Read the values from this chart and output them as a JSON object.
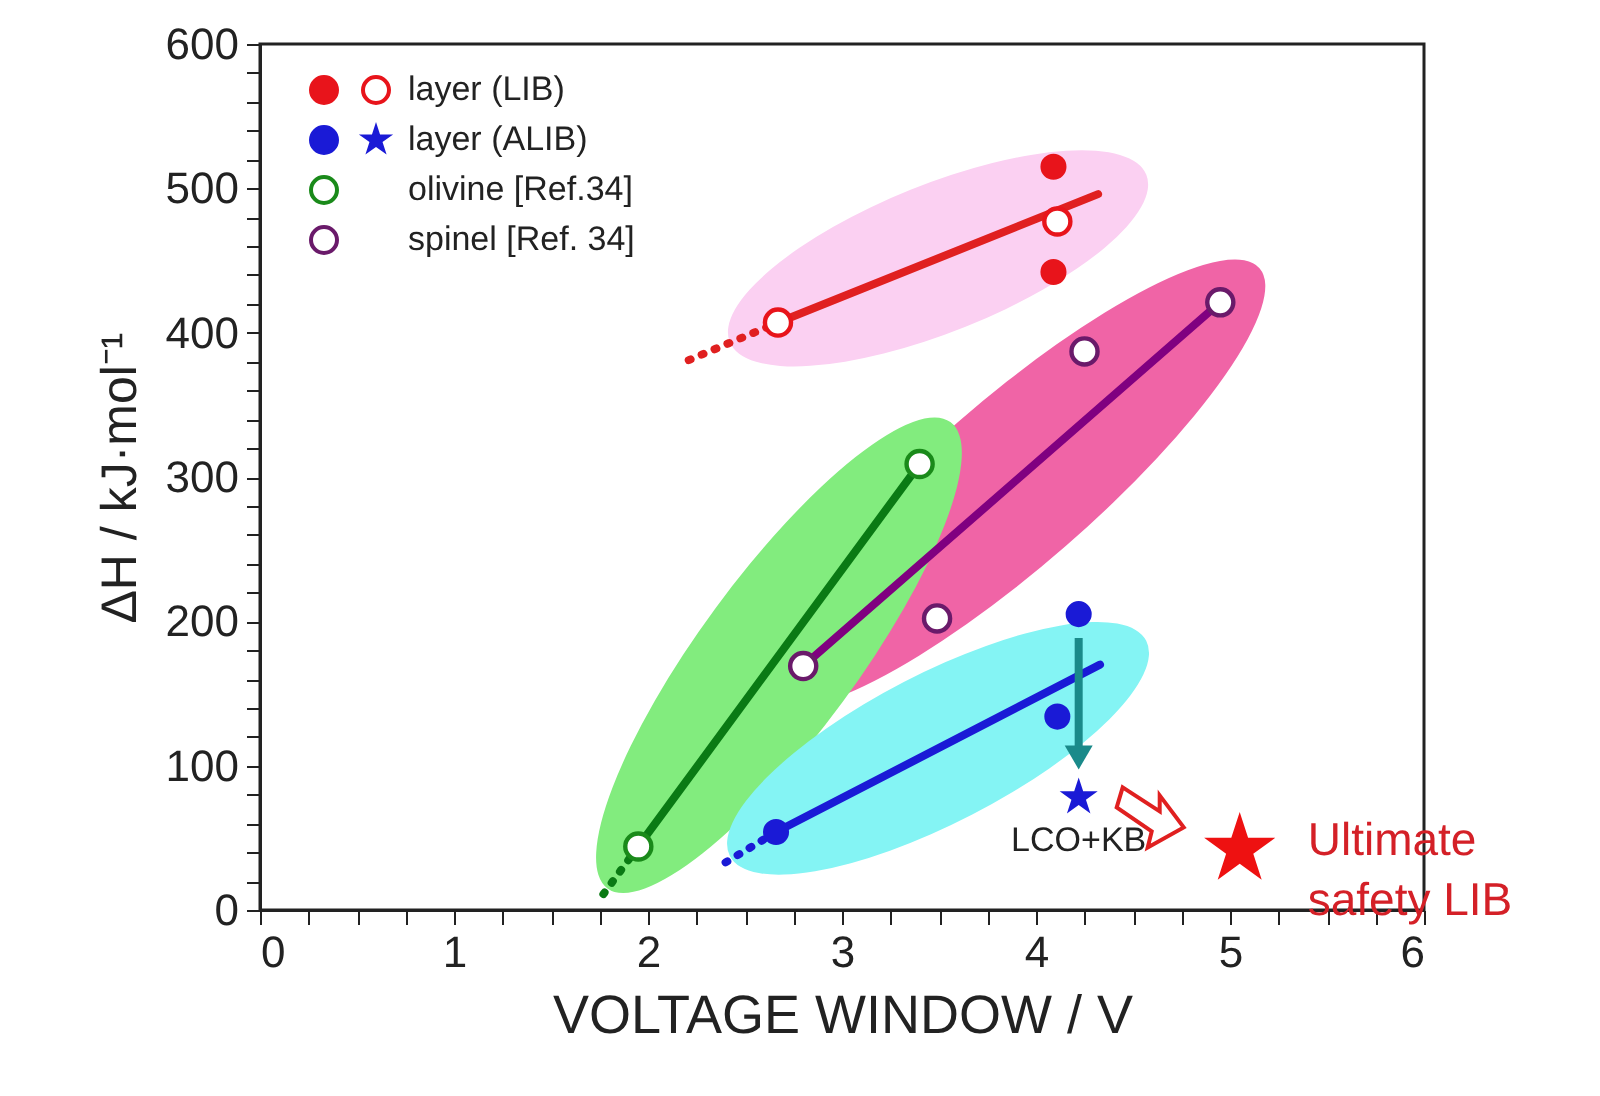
{
  "chart_data": {
    "type": "scatter",
    "xlabel": "VOLTAGE WINDOW / V",
    "ylabel": "ΔH / kJ·mol⁻¹",
    "xlim": [
      0,
      6
    ],
    "ylim": [
      0,
      600
    ],
    "xticks": [
      0,
      {
        "value": 0.25,
        "label": null
      },
      {
        "value": 0.5,
        "label": null
      },
      {
        "value": 0.75,
        "label": null
      },
      1,
      {
        "value": 1.25,
        "label": null
      },
      {
        "value": 1.5,
        "label": null
      },
      {
        "value": 1.75,
        "label": null
      },
      2,
      {
        "value": 2.25,
        "label": null
      },
      {
        "value": 2.5,
        "label": null
      },
      {
        "value": 2.75,
        "label": null
      },
      3,
      {
        "value": 3.25,
        "label": null
      },
      {
        "value": 3.5,
        "label": null
      },
      {
        "value": 3.75,
        "label": null
      },
      4,
      {
        "value": 4.25,
        "label": null
      },
      {
        "value": 4.5,
        "label": null
      },
      {
        "value": 4.75,
        "label": null
      },
      5,
      {
        "value": 5.25,
        "label": null
      },
      {
        "value": 5.5,
        "label": null
      },
      {
        "value": 5.75,
        "label": null
      },
      6
    ],
    "yticks": [
      0,
      {
        "value": 20,
        "label": null
      },
      {
        "value": 40,
        "label": null
      },
      {
        "value": 60,
        "label": null
      },
      {
        "value": 80,
        "label": null
      },
      100,
      {
        "value": 120,
        "label": null
      },
      {
        "value": 140,
        "label": null
      },
      {
        "value": 160,
        "label": null
      },
      {
        "value": 180,
        "label": null
      },
      200,
      {
        "value": 220,
        "label": null
      },
      {
        "value": 240,
        "label": null
      },
      {
        "value": 260,
        "label": null
      },
      {
        "value": 280,
        "label": null
      },
      300,
      {
        "value": 320,
        "label": null
      },
      {
        "value": 340,
        "label": null
      },
      {
        "value": 360,
        "label": null
      },
      {
        "value": 380,
        "label": null
      },
      400,
      {
        "value": 420,
        "label": null
      },
      {
        "value": 440,
        "label": null
      },
      {
        "value": 460,
        "label": null
      },
      {
        "value": 480,
        "label": null
      },
      500,
      {
        "value": 520,
        "label": null
      },
      {
        "value": 540,
        "label": null
      },
      {
        "value": 560,
        "label": null
      },
      {
        "value": 580,
        "label": null
      },
      600
    ],
    "grid": false,
    "legend": "top left",
    "marker": "circle",
    "line_style": "solid",
    "series": [
      {
        "name": "layer (LIB)",
        "color": "#e8141b",
        "x": [
          4.09,
          4.09
        ],
        "values": [
          515,
          442
        ]
      },
      {
        "color": "#e8141b",
        "x": [
          4.11,
          2.67
        ],
        "values": [
          477,
          407
        ]
      },
      {
        "name": "layer (ALIB)",
        "color": "#1a1ad6",
        "x": [
          4.22,
          4.11,
          2.66
        ],
        "values": [
          205,
          134,
          54
        ]
      },
      {
        "color": "#1a1ad6",
        "marker": "star",
        "x": [
          4.22
        ],
        "values": [
          78
        ]
      },
      {
        "name": "olivine [Ref.34]",
        "color": "#1a8a1a",
        "x": [
          3.4,
          1.95
        ],
        "values": [
          309,
          44
        ]
      },
      {
        "name": "spinel [Ref. 34]",
        "color": "#6a1a6a",
        "x": [
          2.8,
          3.49,
          4.25,
          4.95
        ],
        "values": [
          169,
          202,
          387,
          421
        ]
      },
      {
        "type": "line",
        "marker": "none",
        "color": "#e02020",
        "x": [
          2.67,
          4.32
        ],
        "values": [
          407,
          496
        ]
      },
      {
        "type": "line",
        "marker": "none",
        "color": "#e02020",
        "line_style": "dotted",
        "x": [
          2.21,
          2.67
        ],
        "values": [
          381,
          407
        ]
      },
      {
        "type": "line",
        "marker": "none",
        "color": "#800080",
        "x": [
          2.8,
          4.95
        ],
        "values": [
          169,
          421
        ]
      },
      {
        "type": "line",
        "marker": "none",
        "color": "#0a7a14",
        "x": [
          1.95,
          3.4
        ],
        "values": [
          44,
          309
        ]
      },
      {
        "type": "line",
        "marker": "none",
        "color": "#0a7a14",
        "line_style": "dotted",
        "x": [
          1.77,
          1.95
        ],
        "values": [
          11,
          44
        ]
      },
      {
        "type": "line",
        "marker": "none",
        "color": "#1a1ad6",
        "x": [
          2.66,
          4.33
        ],
        "values": [
          54,
          170
        ]
      },
      {
        "type": "line",
        "marker": "none",
        "color": "#1a1ad6",
        "line_style": "dotted",
        "x": [
          2.4,
          2.66
        ],
        "values": [
          33,
          54
        ]
      },
      {
        "color": "#ee1111",
        "marker": "star",
        "x": [
          5.05
        ],
        "values": [
          42
        ]
      }
    ],
    "annotations": [
      {
        "text": "LCO+KB",
        "x": 4.22,
        "y": 78
      },
      {
        "text": "Ultimate\nsafety LIB",
        "x": 5.05,
        "y": 42
      }
    ]
  }
}
